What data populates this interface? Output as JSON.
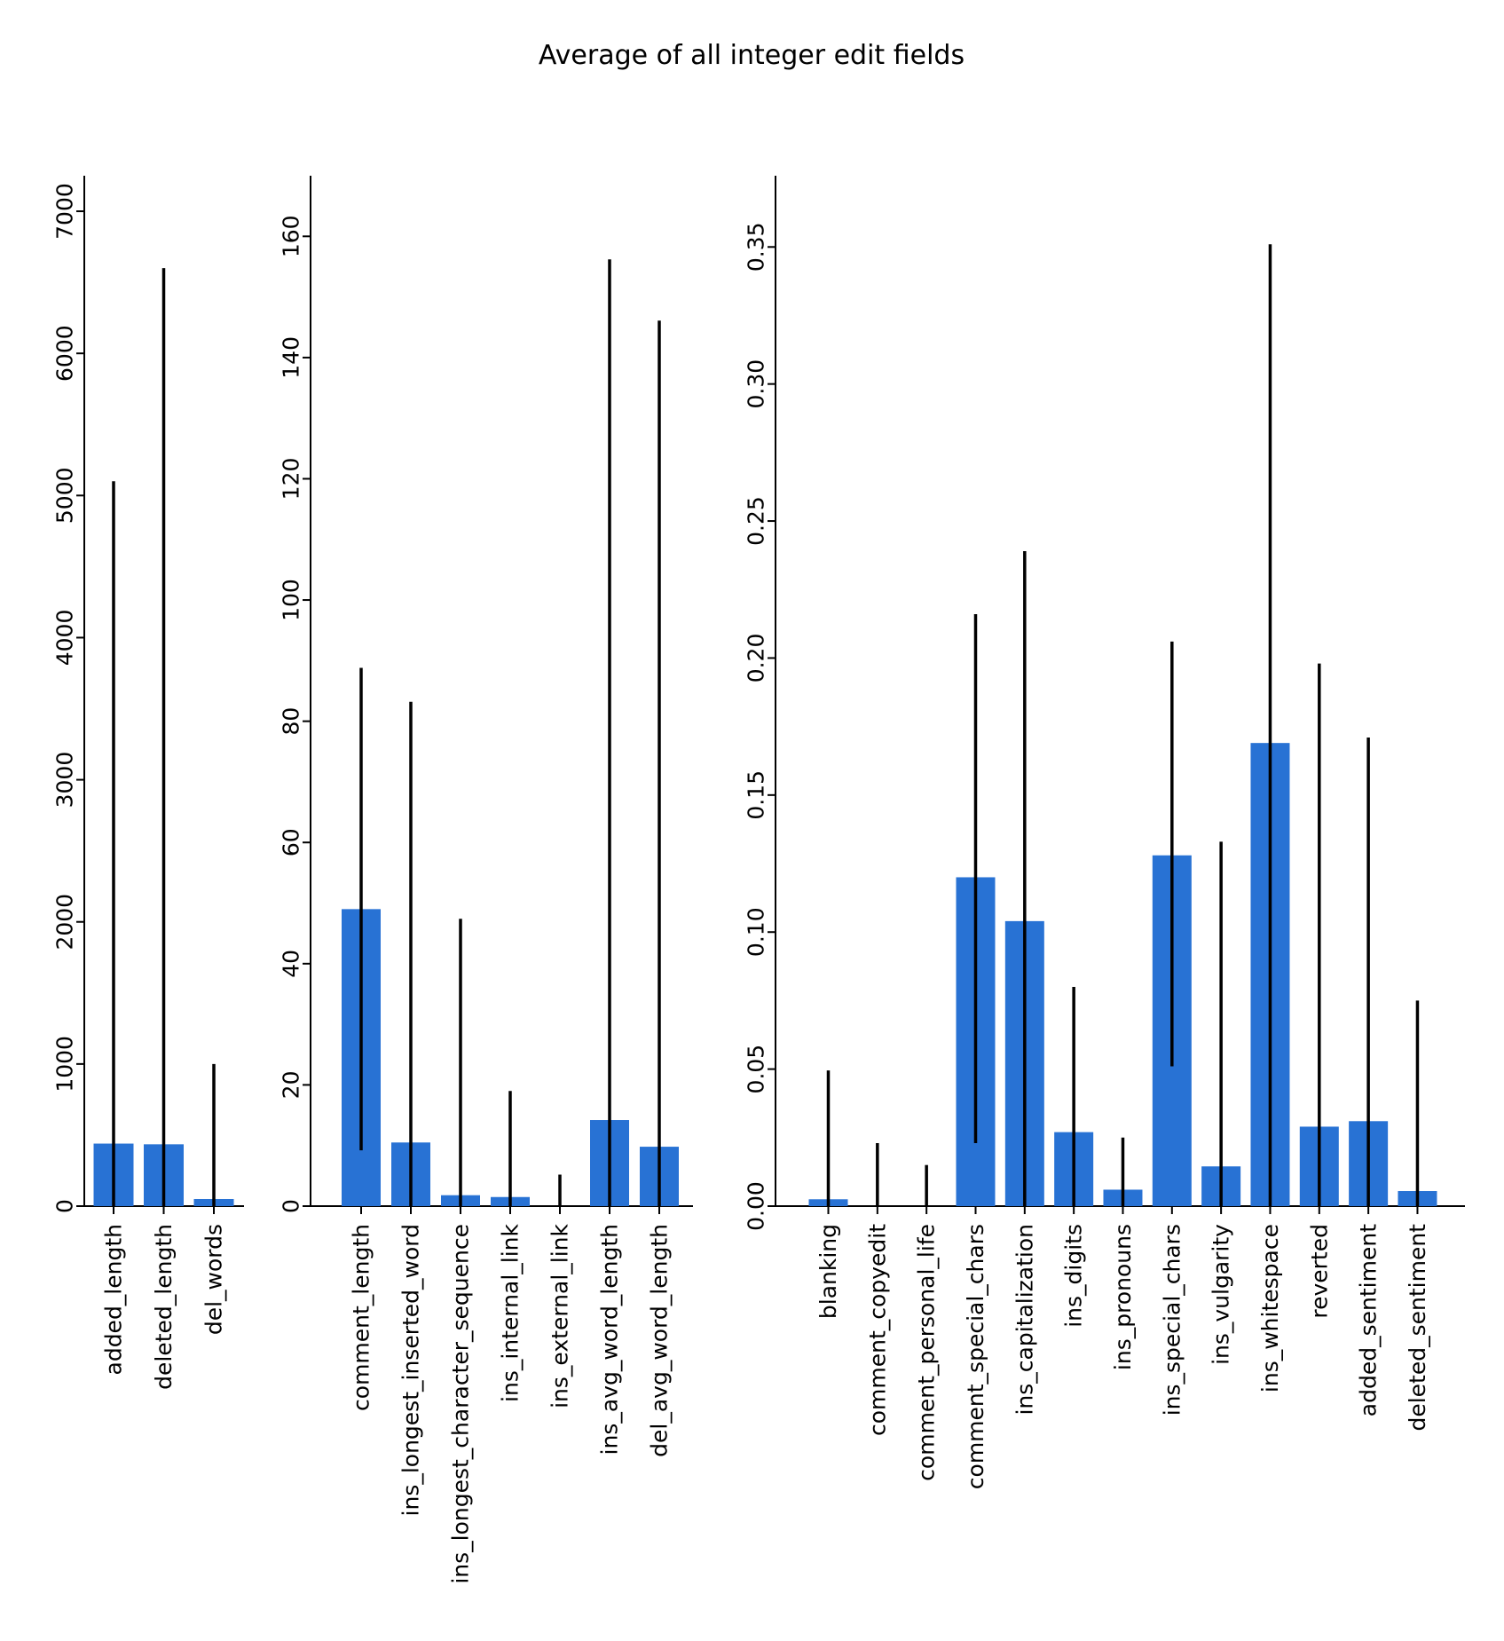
{
  "chart_data": {
    "title": "Average of all integer edit fields",
    "type": "bar",
    "bar_color": "#2872d4",
    "errorbar_color": "#000000",
    "grid": false,
    "panels": [
      {
        "type": "bar",
        "ylim": [
          0,
          7250
        ],
        "yticks": [
          0,
          1000,
          2000,
          3000,
          4000,
          5000,
          6000,
          7000
        ],
        "ytick_labels": [
          "0",
          "1000",
          "2000",
          "3000",
          "4000",
          "5000",
          "6000",
          "7000"
        ],
        "categories": [
          "added_length",
          "deleted_length",
          "del_words"
        ],
        "values": [
          440,
          435,
          50
        ],
        "error_upper": [
          5100,
          6600,
          1000
        ],
        "error_lower": [
          0,
          0,
          0
        ]
      },
      {
        "type": "bar",
        "ylim": [
          0,
          170
        ],
        "yticks": [
          0,
          20,
          40,
          60,
          80,
          100,
          120,
          140,
          160
        ],
        "ytick_labels": [
          "0",
          "20",
          "40",
          "60",
          "80",
          "100",
          "120",
          "140",
          "160"
        ],
        "categories": [
          "comment_length",
          "ins_longest_inserted_word",
          "ins_longest_character_sequence",
          "ins_internal_link",
          "ins_external_link",
          "ins_avg_word_length",
          "del_avg_word_length"
        ],
        "values": [
          49,
          10.5,
          1.8,
          1.5,
          0,
          14.2,
          9.8
        ],
        "error_upper": [
          88.8,
          83.2,
          47.4,
          19,
          5.2,
          156.2,
          146.1
        ],
        "error_lower": [
          9.2,
          0,
          0,
          0,
          0,
          0,
          0
        ]
      },
      {
        "type": "bar",
        "ylim": [
          0,
          0.376
        ],
        "yticks": [
          0,
          0.05,
          0.1,
          0.15,
          0.2,
          0.25,
          0.3,
          0.35
        ],
        "ytick_labels": [
          "0.00",
          "0.05",
          "0.10",
          "0.15",
          "0.20",
          "0.25",
          "0.30",
          "0.35"
        ],
        "categories": [
          "blanking",
          "comment_copyedit",
          "comment_personal_life",
          "comment_special_chars",
          "ins_capitalization",
          "ins_digits",
          "ins_pronouns",
          "ins_special_chars",
          "ins_vulgarity",
          "ins_whitespace",
          "reverted",
          "added_sentiment",
          "deleted_sentiment"
        ],
        "values": [
          0.0025,
          0,
          0,
          0.12,
          0.104,
          0.027,
          0.006,
          0.128,
          0.0145,
          0.169,
          0.029,
          0.031,
          0.0055
        ],
        "error_upper": [
          0.0495,
          0.023,
          0.015,
          0.216,
          0.239,
          0.08,
          0.025,
          0.206,
          0.133,
          0.351,
          0.198,
          0.171,
          0.075
        ],
        "error_lower": [
          0,
          0,
          0,
          0.023,
          0,
          0,
          0,
          0.051,
          0,
          0,
          0,
          0,
          0
        ]
      }
    ]
  }
}
